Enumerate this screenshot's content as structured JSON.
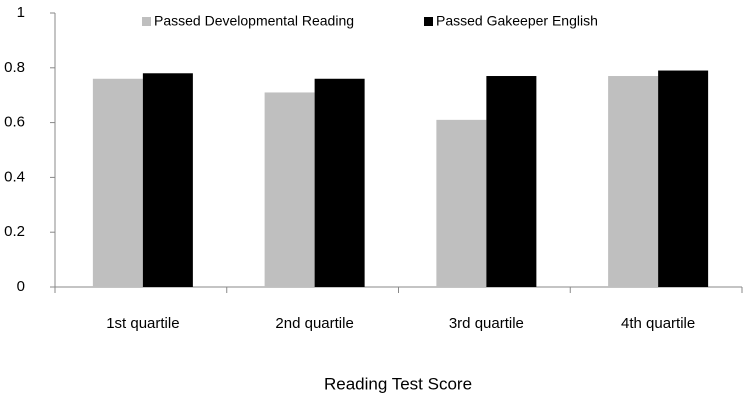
{
  "chart_data": {
    "type": "bar",
    "x_label": "Reading Test Score",
    "categories": [
      "1st quartile",
      "2nd quartile",
      "3rd quartile",
      "4th quartile"
    ],
    "series": [
      {
        "name": "Passed Developmental Reading",
        "color": "#bfbfbf",
        "values": [
          0.76,
          0.71,
          0.61,
          0.77
        ]
      },
      {
        "name": "Passed Gakeeper English",
        "color": "#000000",
        "values": [
          0.78,
          0.76,
          0.77,
          0.79
        ]
      }
    ],
    "ylim": [
      0,
      1
    ],
    "yticks": [
      0,
      0.2,
      0.4,
      0.6,
      0.8,
      1
    ],
    "grid": false,
    "legend": "top"
  }
}
